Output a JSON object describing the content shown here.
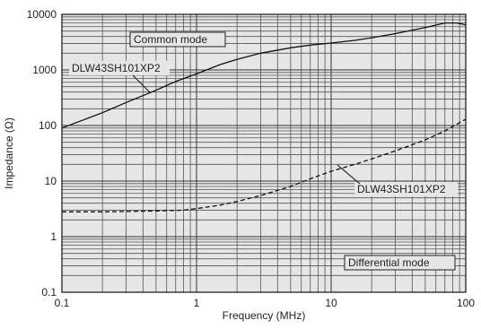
{
  "chart_data": {
    "type": "line",
    "x_scale": "log",
    "y_scale": "log",
    "xlim": [
      0.1,
      100
    ],
    "ylim": [
      0.1,
      10000
    ],
    "xlabel": "Frequency (MHz)",
    "ylabel": "Impedance (Ω)",
    "x_ticks": [
      "0.1",
      "1",
      "10",
      "100"
    ],
    "y_ticks": [
      "0.1",
      "1",
      "10",
      "100",
      "1000",
      "10000"
    ],
    "grid": true,
    "background": "#e6e6e6",
    "series": [
      {
        "name": "DLW43SH101XP2",
        "mode_label": "Common mode",
        "style": "solid",
        "color": "#111111",
        "x": [
          0.1,
          0.2,
          0.3,
          0.5,
          0.7,
          1,
          1.5,
          2,
          3,
          5,
          7,
          10,
          15,
          20,
          30,
          50,
          70,
          85,
          100
        ],
        "y": [
          90,
          170,
          260,
          430,
          620,
          850,
          1250,
          1550,
          2000,
          2500,
          2800,
          3050,
          3400,
          3800,
          4500,
          5800,
          7000,
          7000,
          6500
        ]
      },
      {
        "name": "DLW43SH101XP2",
        "mode_label": "Differential mode",
        "style": "dashed",
        "color": "#111111",
        "x": [
          0.1,
          0.2,
          0.5,
          0.8,
          1,
          1.5,
          2,
          3,
          5,
          7,
          10,
          15,
          20,
          30,
          50,
          70,
          100
        ],
        "y": [
          2.8,
          2.8,
          2.9,
          3.0,
          3.2,
          3.7,
          4.3,
          5.5,
          8,
          11,
          15,
          20,
          25,
          35,
          55,
          80,
          130
        ]
      }
    ]
  }
}
